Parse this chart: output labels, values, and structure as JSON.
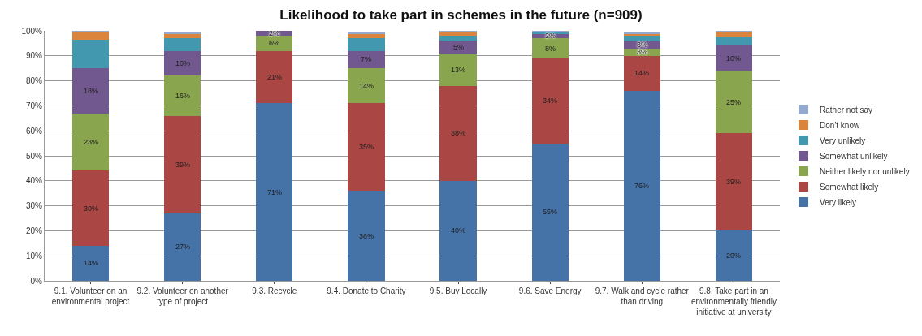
{
  "chart_data": {
    "type": "bar",
    "title": "Likelihood to take part in schemes in the future (n=909)",
    "stacked": true,
    "legend": "right",
    "grid": "y",
    "categories": [
      "9.1. Volunteer on an environmental project",
      "9.2. Volunteer on another type of project",
      "9.3. Recycle",
      "9.4. Donate to Charity",
      "9.5. Buy Locally",
      "9.6. Save Energy",
      "9.7. Walk and cycle rather than driving",
      "9.8. Take part in an environmentally friendly initiative at university"
    ],
    "ylim": [
      0,
      100
    ],
    "yticks": [
      {
        "value": 0,
        "label": "0%"
      },
      {
        "value": 10,
        "label": "10%"
      },
      {
        "value": 20,
        "label": "20%"
      },
      {
        "value": 30,
        "label": "30%"
      },
      {
        "value": 40,
        "label": "40%"
      },
      {
        "value": 50,
        "label": "50%"
      },
      {
        "value": 60,
        "label": "60%"
      },
      {
        "value": 70,
        "label": "70%"
      },
      {
        "value": 80,
        "label": "80%"
      },
      {
        "value": 90,
        "label": "90%"
      },
      {
        "value": 100,
        "label": "100%"
      }
    ],
    "series": [
      {
        "name": "Very likely",
        "color": "#4572a7",
        "values": [
          14,
          27,
          71,
          36,
          40,
          55,
          76,
          20
        ],
        "value_labels": [
          "14%",
          "27%",
          "71%",
          "36%",
          "40%",
          "55%",
          "76%",
          "20%"
        ]
      },
      {
        "name": "Somewhat likely",
        "color": "#aa4643",
        "values": [
          30,
          39,
          21,
          35,
          38,
          34,
          14,
          39
        ],
        "value_labels": [
          "30%",
          "39%",
          "21%",
          "35%",
          "38%",
          "34%",
          "14%",
          "39%"
        ]
      },
      {
        "name": "Neither likely nor unlikely",
        "color": "#89a54e",
        "values": [
          23,
          16,
          6,
          14,
          13,
          8,
          3,
          25
        ],
        "value_labels": [
          "23%",
          "16%",
          "6%",
          "14%",
          "13%",
          "8%",
          "3%",
          "25%"
        ]
      },
      {
        "name": "Somewhat unlikely",
        "color": "#71588f",
        "values": [
          18,
          10,
          2,
          7,
          5,
          2,
          3,
          10
        ],
        "value_labels": [
          "18%",
          "10%",
          "2%",
          "7%",
          "5%",
          "2%",
          "3%",
          "10%"
        ]
      },
      {
        "name": "Very unlikely",
        "color": "#4198af",
        "values": [
          11.5,
          5,
          0,
          5,
          2,
          0.5,
          2,
          3.5
        ]
      },
      {
        "name": "Don't know",
        "color": "#db843d",
        "values": [
          3,
          2,
          0,
          2,
          1.5,
          0.3,
          1,
          2
        ]
      },
      {
        "name": "Rather not say",
        "color": "#93a9cf",
        "values": [
          0.5,
          0.5,
          0,
          0.5,
          0.5,
          0.2,
          0.5,
          0.5
        ]
      }
    ]
  }
}
